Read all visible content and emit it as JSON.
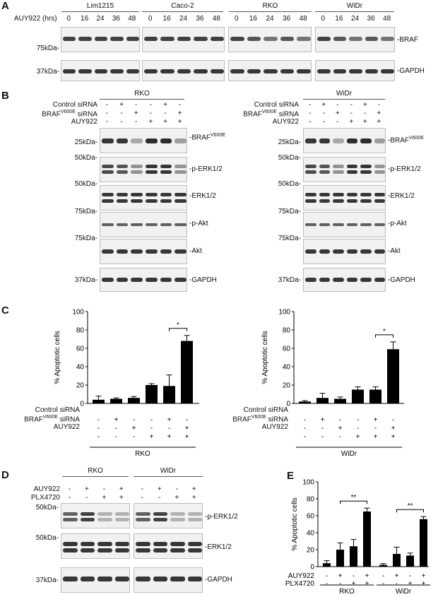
{
  "panels": {
    "A": "A",
    "B": "B",
    "C": "C",
    "D": "D",
    "E": "E"
  },
  "panelA": {
    "time_label": "AUY922 (hrs)",
    "cell_lines": [
      "Lim1215",
      "Caco-2",
      "RKO",
      "WiDr"
    ],
    "timepoints": [
      "0",
      "16",
      "24",
      "36",
      "48"
    ],
    "markers": [
      "75kDa-",
      "37kDa-"
    ],
    "proteins": [
      "-BRAF",
      "-GAPDH"
    ]
  },
  "panelB": {
    "cell_lines": [
      "RKO",
      "WiDr"
    ],
    "conditions": [
      "Control siRNA",
      "BRAFV600E siRNA",
      "AUY922"
    ],
    "signs": [
      [
        "-",
        "+",
        "-",
        "-",
        "+",
        "-"
      ],
      [
        "-",
        "-",
        "+",
        "-",
        "-",
        "+"
      ],
      [
        "-",
        "-",
        "-",
        "+",
        "+",
        "+"
      ]
    ],
    "markers": [
      "25kDa-",
      "50kDa-",
      "50kDa-",
      "75kDa-",
      "75kDa-",
      "37kDa-"
    ],
    "proteins": [
      "-BRAFV600E",
      "-p-ERK1/2",
      "-ERK1/2",
      "-p-Akt",
      "-Akt",
      "-GAPDH"
    ]
  },
  "panelC": {
    "ylabel": "% Apoptotic cells",
    "conditions": [
      "Control siRNA",
      "BRAFV600E siRNA",
      "AUY922"
    ],
    "sig": "*"
  },
  "panelD": {
    "cell_lines": [
      "RKO",
      "WiDr"
    ],
    "conditions": [
      "AUY922",
      "PLX4720"
    ],
    "signs": [
      [
        "-",
        "+",
        "-",
        "+"
      ],
      [
        "-",
        "-",
        "+",
        "+"
      ]
    ],
    "markers": [
      "50kDa-",
      "50kDa-",
      "37kDa-"
    ],
    "proteins": [
      "-p-ERK1/2",
      "-ERK1/2",
      "-GAPDH"
    ]
  },
  "panelE": {
    "ylabel": "% Apoptotic cells",
    "conditions": [
      "AUY922",
      "PLX4720"
    ],
    "sig": "**"
  },
  "chart_data": [
    {
      "type": "bar",
      "panel": "C-RKO",
      "group_label": "RKO",
      "categories": [
        "1",
        "2",
        "3",
        "4",
        "5",
        "6"
      ],
      "signs": [
        [
          "-",
          "+",
          "-",
          "-",
          "+",
          "-"
        ],
        [
          "-",
          "-",
          "+",
          "-",
          "-",
          "+"
        ],
        [
          "-",
          "-",
          "-",
          "+",
          "+",
          "+"
        ]
      ],
      "values": [
        4,
        5,
        6,
        20,
        19,
        68
      ],
      "errors": [
        4,
        1,
        1.5,
        1.5,
        12,
        6
      ],
      "ylim": [
        0,
        100
      ],
      "yticks": [
        "0",
        "20",
        "40",
        "60",
        "80",
        "100"
      ],
      "ylabel": "% Apoptotic cells",
      "significance": {
        "from": 4,
        "to": 5,
        "label": "*"
      }
    },
    {
      "type": "bar",
      "panel": "C-WiDr",
      "group_label": "WiDr",
      "categories": [
        "1",
        "2",
        "3",
        "4",
        "5",
        "6"
      ],
      "signs": [
        [
          "-",
          "+",
          "-",
          "-",
          "+",
          "-"
        ],
        [
          "-",
          "-",
          "+",
          "-",
          "-",
          "+"
        ],
        [
          "-",
          "-",
          "-",
          "+",
          "+",
          "+"
        ]
      ],
      "values": [
        2,
        6,
        5,
        15,
        15,
        59
      ],
      "errors": [
        1,
        5,
        2,
        3,
        3,
        8
      ],
      "ylim": [
        0,
        100
      ],
      "yticks": [
        "0",
        "20",
        "40",
        "60",
        "80",
        "100"
      ],
      "ylabel": "% Apoptotic cells",
      "significance": {
        "from": 4,
        "to": 5,
        "label": "*"
      }
    },
    {
      "type": "bar",
      "panel": "E",
      "categories": [
        "1",
        "2",
        "3",
        "4",
        "5",
        "6",
        "7",
        "8"
      ],
      "groups": [
        "RKO",
        "WiDr"
      ],
      "signs": [
        [
          "-",
          "+",
          "-",
          "+",
          "-",
          "+",
          "-",
          "+"
        ],
        [
          "-",
          "-",
          "+",
          "+",
          "-",
          "-",
          "+",
          "+"
        ]
      ],
      "values": [
        4,
        20,
        24,
        65,
        2,
        15,
        13,
        56
      ],
      "errors": [
        3,
        8,
        8,
        4,
        1.5,
        8,
        3,
        3
      ],
      "ylim": [
        0,
        100
      ],
      "yticks": [
        "0",
        "20",
        "40",
        "60",
        "80",
        "100"
      ],
      "ylabel": "% Apoptotic cells",
      "significance": [
        {
          "from": 1,
          "to": 3,
          "label": "**"
        },
        {
          "from": 5,
          "to": 7,
          "label": "**"
        }
      ]
    }
  ]
}
